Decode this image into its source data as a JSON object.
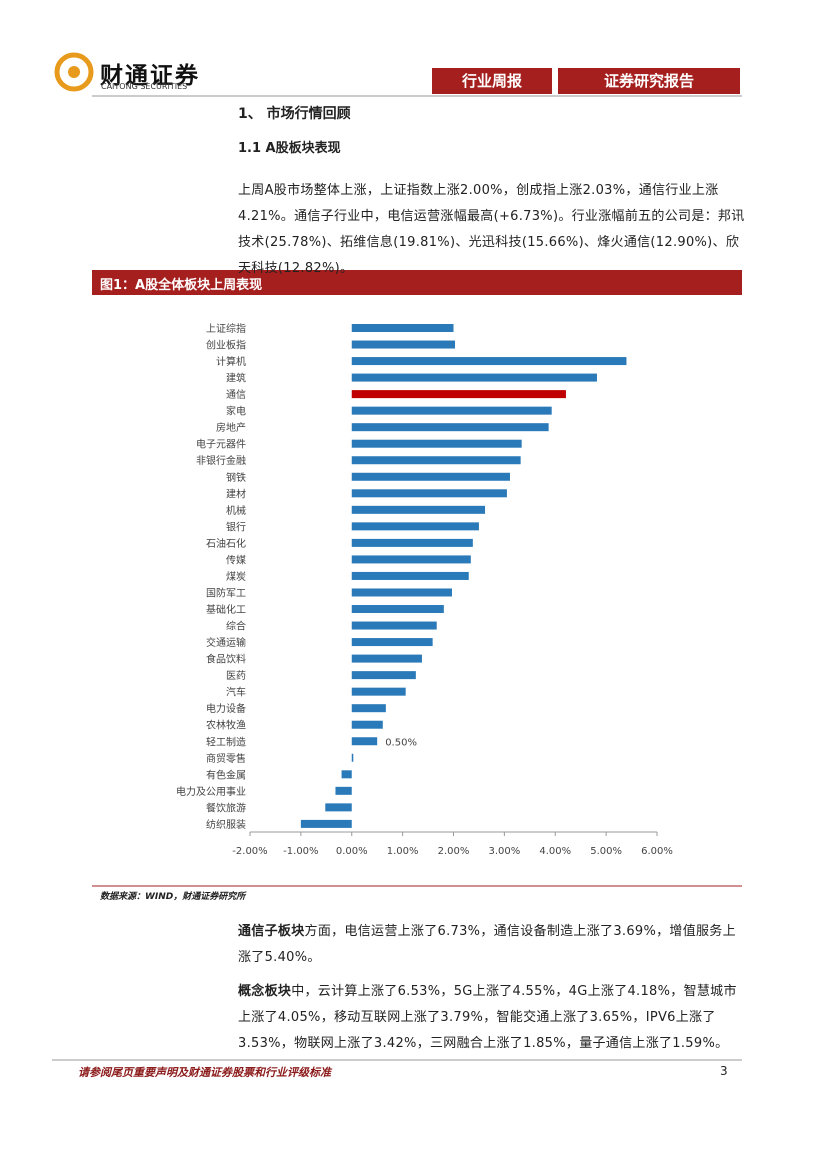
{
  "header": {
    "logo": "财通证券",
    "logo_en": "CAITONG SECURITIES",
    "tabs": [
      "行业周报",
      "证券研究报告"
    ]
  },
  "section": {
    "title": "1、 市场行情回顾",
    "subtitle": "1.1  A股板块表现",
    "paragraph": "上周A股市场整体上涨，上证指数上涨2.00%，创成指上涨2.03%，通信行业上涨4.21%。通信子行业中，电信运营涨幅最高(+6.73%)。行业涨幅前五的公司是：邦讯技术(25.78%)、拓维信息(19.81%)、光迅科技(15.66%)、烽火通信(12.90%)、欣天科技(12.82%)。"
  },
  "figure": {
    "title": "图1：A股全体板块上周表现",
    "source": "数据来源：WIND，财通证券研究所"
  },
  "chart_data": {
    "type": "hbar",
    "categories": [
      "上证综指",
      "创业板指",
      "计算机",
      "建筑",
      "通信",
      "家电",
      "房地产",
      "电子元器件",
      "非银行金融",
      "钢铁",
      "建材",
      "机械",
      "银行",
      "石油石化",
      "传媒",
      "煤炭",
      "国防军工",
      "基础化工",
      "综合",
      "交通运输",
      "食品饮料",
      "医药",
      "汽车",
      "电力设备",
      "农林牧渔",
      "轻工制造",
      "商贸零售",
      "有色金属",
      "电力及公用事业",
      "餐饮旅游",
      "纺织服装"
    ],
    "values": [
      2.0,
      2.03,
      5.4,
      4.82,
      4.21,
      3.93,
      3.87,
      3.34,
      3.32,
      3.11,
      3.05,
      2.62,
      2.5,
      2.38,
      2.34,
      2.3,
      1.97,
      1.81,
      1.67,
      1.59,
      1.38,
      1.26,
      1.06,
      0.67,
      0.61,
      0.5,
      0.03,
      -0.2,
      -0.32,
      -0.52,
      -1.0
    ],
    "value_labels": [
      null,
      null,
      null,
      null,
      null,
      null,
      null,
      null,
      null,
      null,
      null,
      null,
      null,
      null,
      null,
      null,
      null,
      null,
      null,
      null,
      null,
      null,
      null,
      null,
      null,
      "0.50%",
      null,
      null,
      null,
      null,
      null
    ],
    "colors": [
      "#2a7ab9",
      "#2a7ab9",
      "#2a7ab9",
      "#2a7ab9",
      "#c00000",
      "#2a7ab9",
      "#2a7ab9",
      "#2a7ab9",
      "#2a7ab9",
      "#2a7ab9",
      "#2a7ab9",
      "#2a7ab9",
      "#2a7ab9",
      "#2a7ab9",
      "#2a7ab9",
      "#2a7ab9",
      "#2a7ab9",
      "#2a7ab9",
      "#2a7ab9",
      "#2a7ab9",
      "#2a7ab9",
      "#2a7ab9",
      "#2a7ab9",
      "#2a7ab9",
      "#2a7ab9",
      "#2a7ab9",
      "#2a7ab9",
      "#2a7ab9",
      "#2a7ab9",
      "#2a7ab9",
      "#2a7ab9"
    ],
    "xlim": [
      -2,
      6
    ],
    "xticks": [
      {
        "value": -2,
        "label": "-2.00%"
      },
      {
        "value": -1,
        "label": "-1.00%"
      },
      {
        "value": 0,
        "label": "0.00%"
      },
      {
        "value": 1,
        "label": "1.00%"
      },
      {
        "value": 2,
        "label": "2.00%"
      },
      {
        "value": 3,
        "label": "3.00%"
      },
      {
        "value": 4,
        "label": "4.00%"
      },
      {
        "value": 5,
        "label": "5.00%"
      },
      {
        "value": 6,
        "label": "6.00%"
      }
    ],
    "grid": false
  },
  "notes": [
    {
      "lead": "通信子板块",
      "text": "方面，电信运营上涨了6.73%，通信设备制造上涨了3.69%，增值服务上涨了5.40%。"
    },
    {
      "lead": "概念板块",
      "text": "中，云计算上涨了6.53%，5G上涨了4.55%，4G上涨了4.18%，智慧城市上涨了4.05%，移动互联网上涨了3.79%，智能交通上涨了3.65%，IPV6上涨了3.53%，物联网上涨了3.42%，三网融合上涨了1.85%，量子通信上涨了1.59%。"
    }
  ],
  "footer": {
    "disclaimer": "请参阅尾页重要声明及财通证券股票和行业评级标准",
    "page": "3"
  }
}
